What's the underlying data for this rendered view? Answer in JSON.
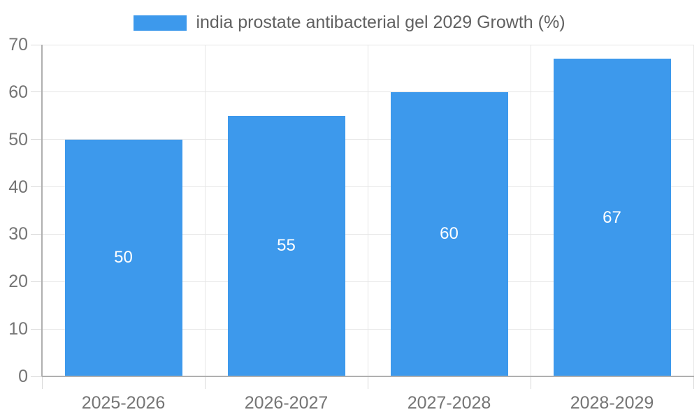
{
  "legend": {
    "label": "india prostate antibacterial gel 2029 Growth (%)",
    "swatch_color": "#3D99EC"
  },
  "chart_data": {
    "type": "bar",
    "title": "india prostate antibacterial gel 2029 Growth (%)",
    "categories": [
      "2025-2026",
      "2026-2027",
      "2027-2028",
      "2028-2029"
    ],
    "values": [
      50,
      55,
      60,
      67
    ],
    "bar_labels": [
      "50",
      "55",
      "60",
      "67"
    ],
    "xlabel": "",
    "ylabel": "",
    "ylim": [
      0,
      70
    ],
    "yticks": [
      0,
      10,
      20,
      30,
      40,
      50,
      60,
      70
    ],
    "grid": true,
    "legend_position": "top"
  },
  "colors": {
    "background": "#ffffff",
    "bar": "#3D99EC",
    "bar_label_text": "#ffffff",
    "gridline": "#e6e6e6",
    "axis_line": "#b0b0b0",
    "tick": "#d9d9d9",
    "axis_label_text": "#757575",
    "legend_text": "#616161"
  }
}
